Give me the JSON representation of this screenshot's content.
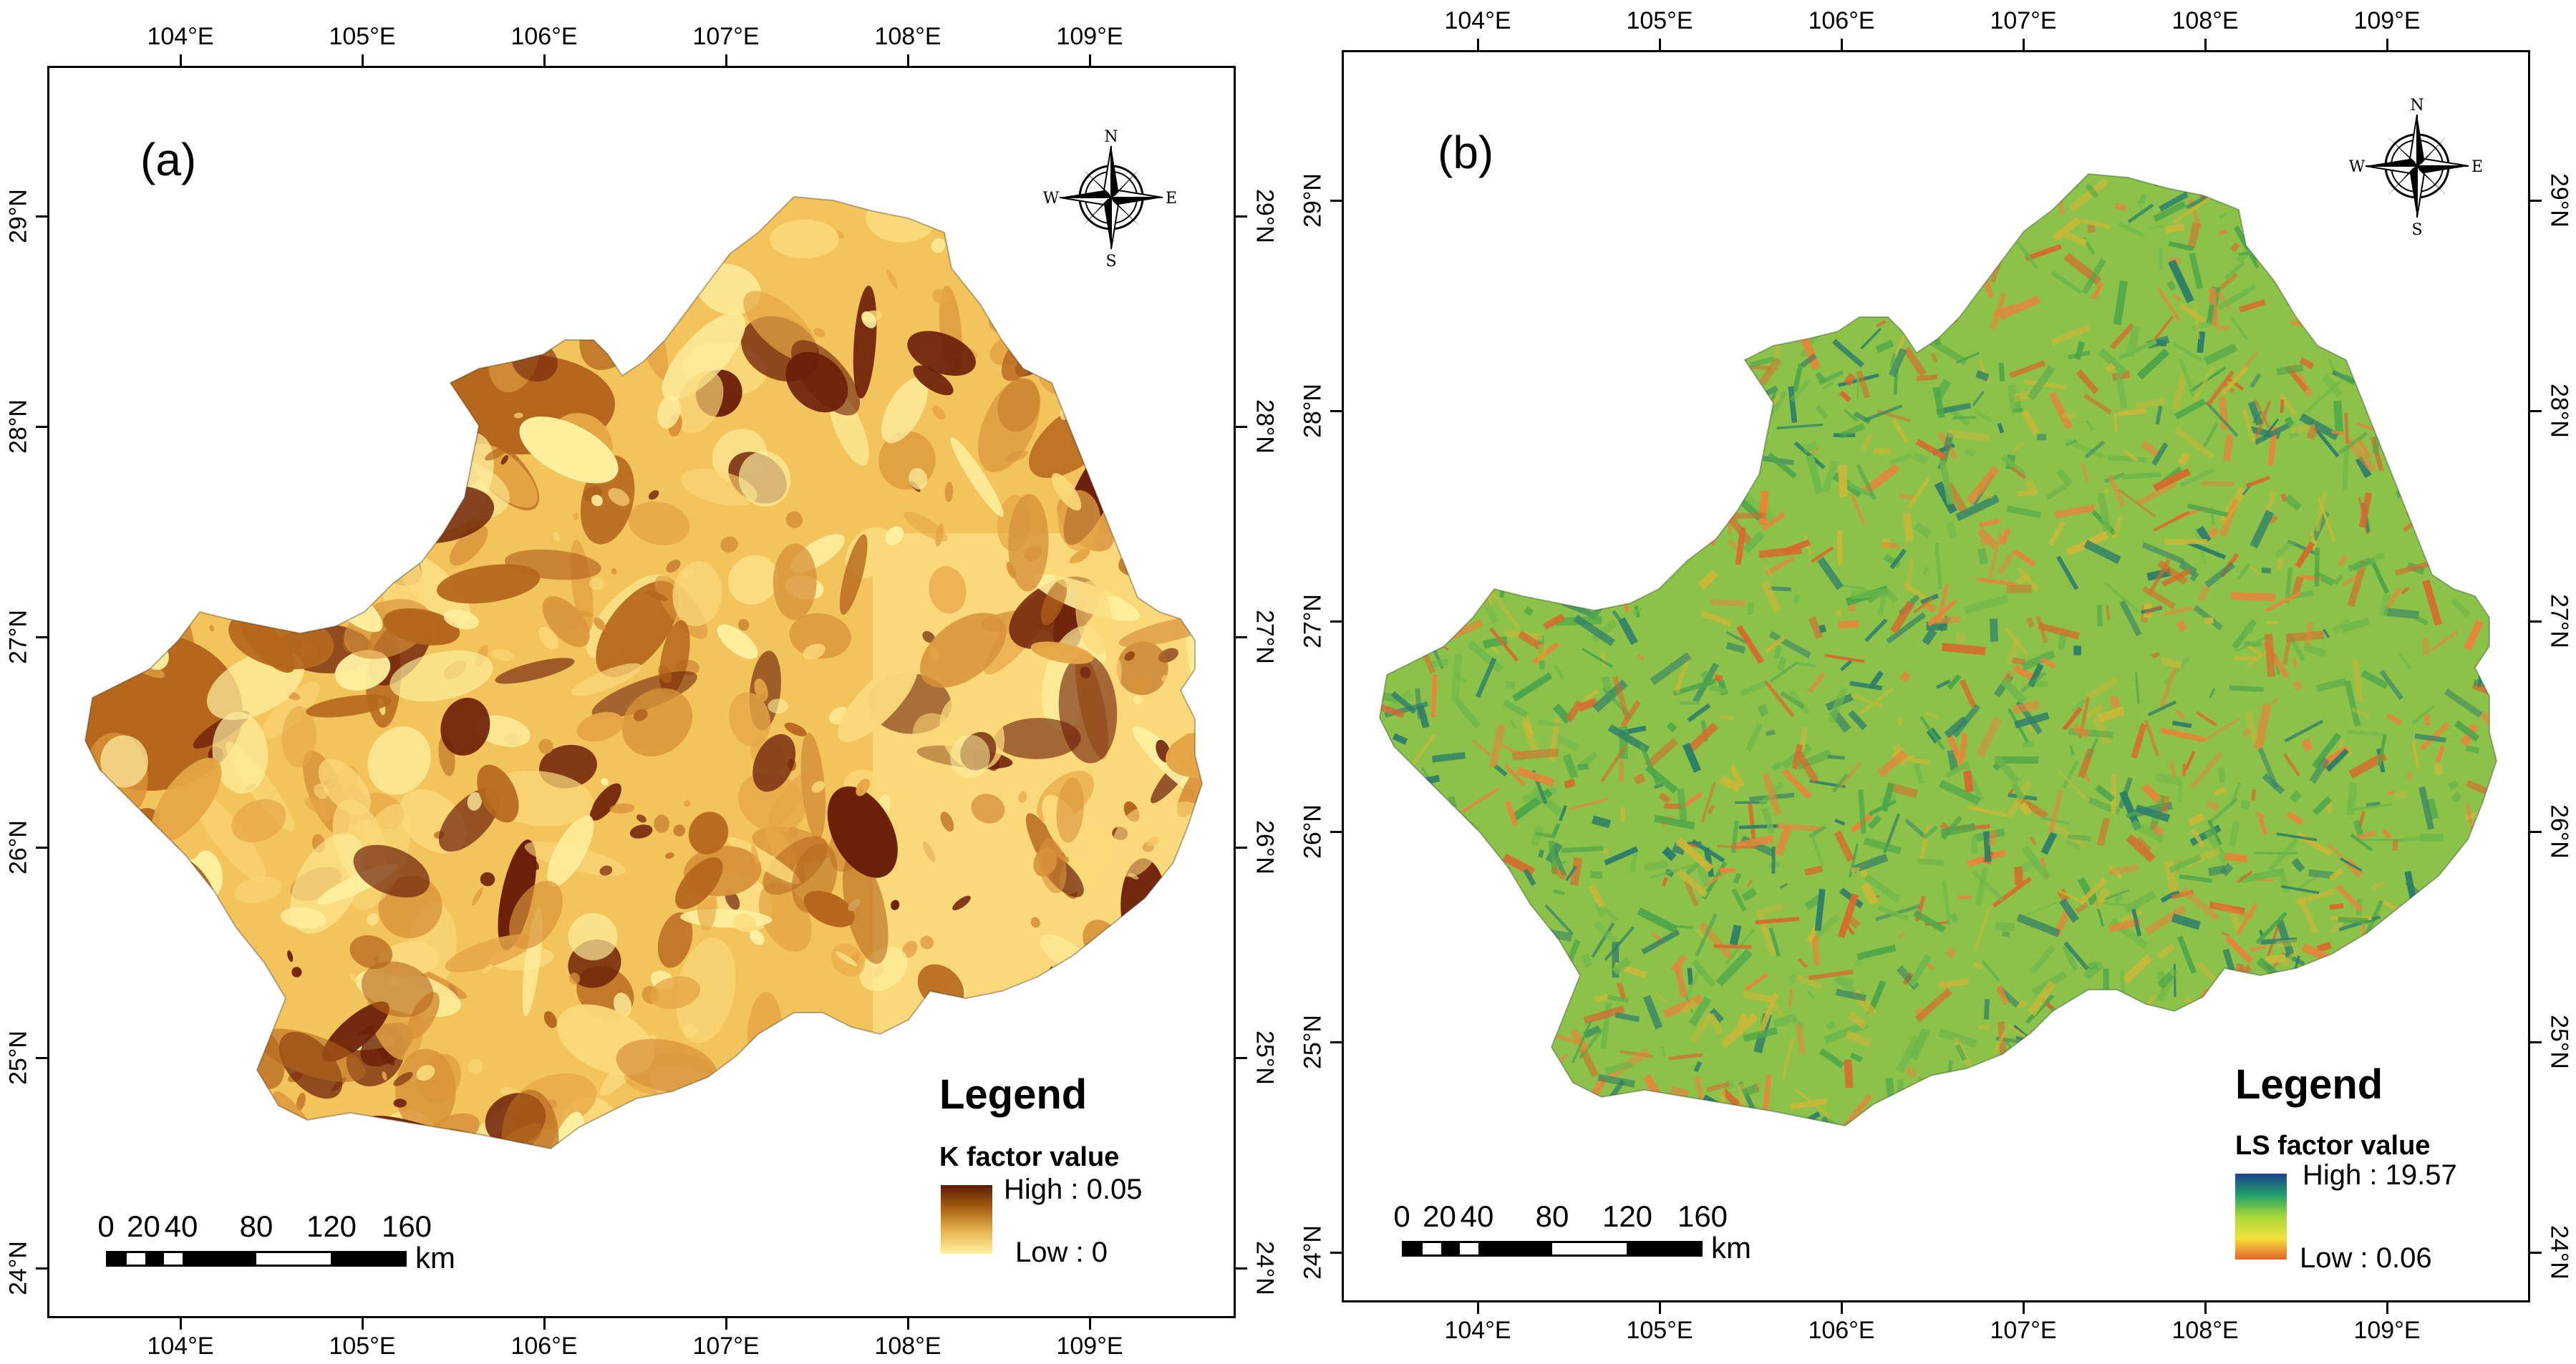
{
  "panels": [
    {
      "label": "(a)",
      "legend_title": "Legend",
      "legend_subtitle": "K factor value",
      "legend_high": "High : 0.05",
      "legend_low": "Low : 0",
      "ramp_colors": [
        "#5c1a08",
        "#a8600f",
        "#e8b350",
        "#fff1a0"
      ],
      "region_palette": [
        "#f3c35c",
        "#e6a646",
        "#fbd97a",
        "#d8923a",
        "#b5671d",
        "#6b1e08",
        "#fff0a0"
      ],
      "lon_labels": [
        "104°E",
        "105°E",
        "106°E",
        "107°E",
        "108°E",
        "109°E"
      ],
      "lat_labels": [
        "24°N",
        "25°N",
        "26°N",
        "27°N",
        "28°N",
        "29°N"
      ],
      "scale_labels": [
        "0",
        "20",
        "40",
        "80",
        "120",
        "160"
      ],
      "scale_unit": "km"
    },
    {
      "label": "(b)",
      "legend_title": "Legend",
      "legend_subtitle": "LS factor value",
      "legend_high": "High : 19.57",
      "legend_low": "Low : 0.06",
      "ramp_colors": [
        "#1f3f8f",
        "#1fa06a",
        "#a8d83a",
        "#f2e03a",
        "#e6632a"
      ],
      "region_palette": [
        "#8cc24a",
        "#d9692e",
        "#c9b83a",
        "#4ea64a",
        "#e8853a",
        "#6fb84a",
        "#2f7f6a"
      ],
      "lon_labels": [
        "104°E",
        "105°E",
        "106°E",
        "107°E",
        "108°E",
        "109°E"
      ],
      "lat_labels": [
        "24°N",
        "25°N",
        "26°N",
        "27°N",
        "28°N",
        "29°N"
      ],
      "scale_labels": [
        "0",
        "20",
        "40",
        "80",
        "120",
        "160"
      ],
      "scale_unit": "km"
    }
  ],
  "compass": {
    "n": "N",
    "s": "S",
    "e": "E",
    "w": "W"
  }
}
